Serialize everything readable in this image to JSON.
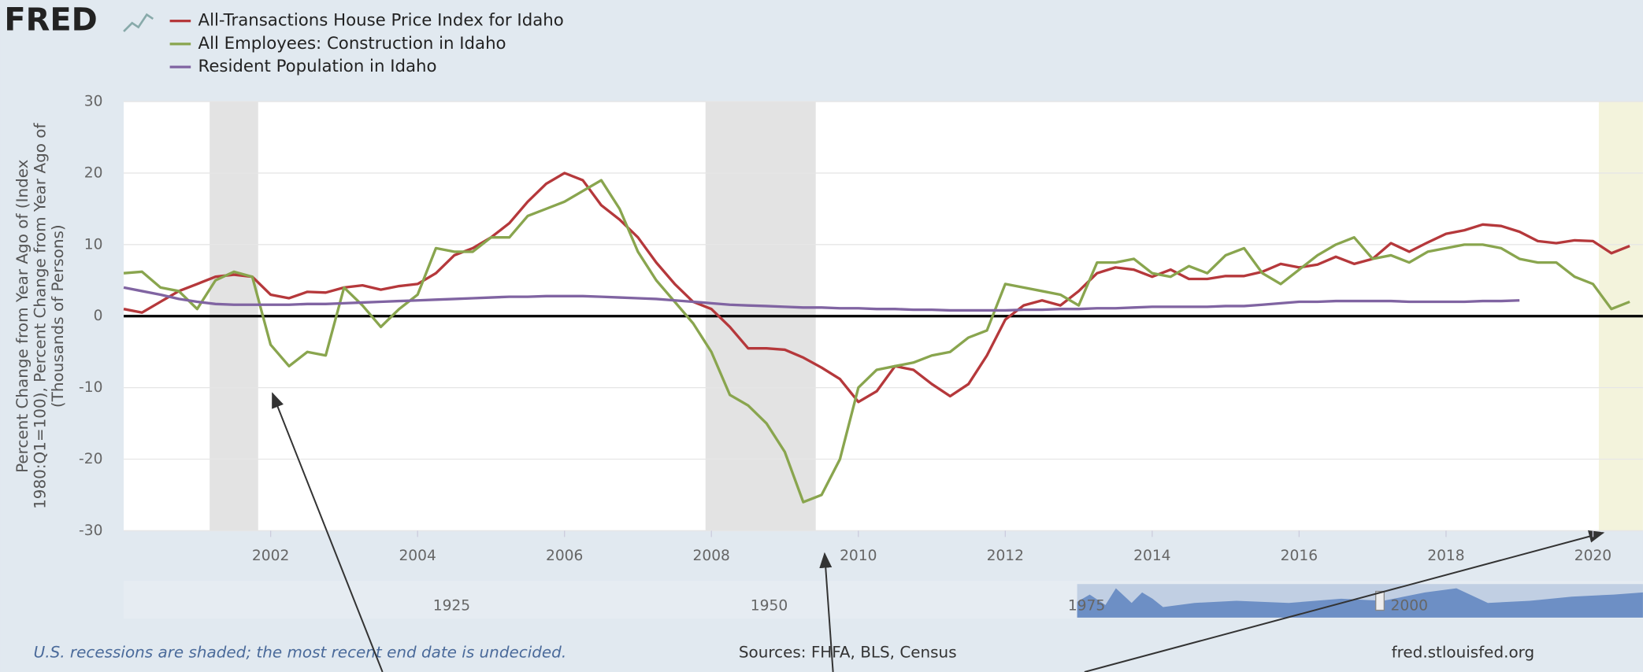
{
  "chart_data": {
    "type": "line",
    "logo": "FRED",
    "ylabel": [
      "Percent Change from Year Ago of (Index",
      "1980:Q1=100), Percent Change from Year Ago of",
      "(Thousands of Persons)"
    ],
    "x": [
      2000,
      2000.25,
      2000.5,
      2000.75,
      2001,
      2001.25,
      2001.5,
      2001.75,
      2002,
      2002.25,
      2002.5,
      2002.75,
      2003,
      2003.25,
      2003.5,
      2003.75,
      2004,
      2004.25,
      2004.5,
      2004.75,
      2005,
      2005.25,
      2005.5,
      2005.75,
      2006,
      2006.25,
      2006.5,
      2006.75,
      2007,
      2007.25,
      2007.5,
      2007.75,
      2008,
      2008.25,
      2008.5,
      2008.75,
      2009,
      2009.25,
      2009.5,
      2009.75,
      2010,
      2010.25,
      2010.5,
      2010.75,
      2011,
      2011.25,
      2011.5,
      2011.75,
      2012,
      2012.25,
      2012.5,
      2012.75,
      2013,
      2013.25,
      2013.5,
      2013.75,
      2014,
      2014.25,
      2014.5,
      2014.75,
      2015,
      2015.25,
      2015.5,
      2015.75,
      2016,
      2016.25,
      2016.5,
      2016.75,
      2017,
      2017.25,
      2017.5,
      2017.75,
      2018,
      2018.25,
      2018.5,
      2018.75,
      2019,
      2019.25,
      2019.5,
      2019.75,
      2020,
      2020.25,
      2020.5
    ],
    "series": [
      {
        "name": "All-Transactions House Price Index for Idaho",
        "color": "#b5383b",
        "values": [
          1.0,
          0.5,
          2.0,
          3.5,
          4.5,
          5.5,
          5.8,
          5.5,
          3.0,
          2.5,
          3.4,
          3.3,
          4.0,
          4.3,
          3.7,
          4.2,
          4.5,
          6.0,
          8.5,
          9.5,
          11,
          13,
          16,
          18.5,
          20,
          19,
          15.5,
          13.5,
          11,
          7.5,
          4.5,
          2,
          1,
          -1.5,
          -4.5,
          -4.5,
          -4.7,
          -5.8,
          -7.2,
          -8.8,
          -12,
          -10.5,
          -7,
          -7.5,
          -9.5,
          -11.2,
          -9.5,
          -5.5,
          -0.5,
          1.5,
          2.2,
          1.5,
          3.5,
          6,
          6.8,
          6.5,
          5.5,
          6.5,
          5.2,
          5.2,
          5.6,
          5.6,
          6.2,
          7.3,
          6.8,
          7.2,
          8.3,
          7.3,
          8.0,
          10.2,
          9.0,
          10.3,
          11.5,
          12,
          12.8,
          12.6,
          11.8,
          10.5,
          10.2,
          10.6,
          10.5,
          8.8,
          9.8
        ]
      },
      {
        "name": "All Employees: Construction in Idaho",
        "color": "#89a54e",
        "values": [
          6,
          6.2,
          4,
          3.5,
          1,
          5,
          6.2,
          5.5,
          -4,
          -7,
          -5,
          -5.5,
          4,
          1.5,
          -1.5,
          1,
          3,
          9.5,
          9,
          9,
          11,
          11,
          14,
          15,
          16,
          17.5,
          19,
          15,
          9,
          5,
          2,
          -1,
          -5,
          -11,
          -12.5,
          -15,
          -19,
          -26,
          -25,
          -20,
          -10,
          -7.5,
          -7,
          -6.5,
          -5.5,
          -5,
          -3,
          -2,
          4.5,
          4,
          3.5,
          3,
          1.5,
          7.5,
          7.5,
          8,
          6,
          5.5,
          7,
          6,
          8.5,
          9.5,
          6,
          4.5,
          6.5,
          8.5,
          10,
          11,
          8,
          8.5,
          7.5,
          9,
          9.5,
          10,
          10,
          9.5,
          8,
          7.5,
          7.5,
          5.5,
          4.5,
          1,
          2
        ]
      },
      {
        "name": "Resident Population in Idaho",
        "color": "#8064a2",
        "values": [
          4,
          3.5,
          3,
          2.4,
          2,
          1.7,
          1.6,
          1.6,
          1.6,
          1.6,
          1.7,
          1.7,
          1.8,
          1.9,
          2.0,
          2.1,
          2.2,
          2.3,
          2.4,
          2.5,
          2.6,
          2.7,
          2.7,
          2.8,
          2.8,
          2.8,
          2.7,
          2.6,
          2.5,
          2.4,
          2.2,
          2.0,
          1.8,
          1.6,
          1.5,
          1.4,
          1.3,
          1.2,
          1.2,
          1.1,
          1.1,
          1.0,
          1.0,
          0.9,
          0.9,
          0.8,
          0.8,
          0.8,
          0.8,
          0.9,
          0.9,
          1.0,
          1.0,
          1.1,
          1.1,
          1.2,
          1.3,
          1.3,
          1.3,
          1.3,
          1.4,
          1.4,
          1.6,
          1.8,
          2.0,
          2.0,
          2.1,
          2.1,
          2.1,
          2.1,
          2.0,
          2.0,
          2.0,
          2.0,
          2.1,
          2.1,
          2.2,
          null,
          null,
          null,
          null,
          null,
          null
        ]
      }
    ],
    "xlim": [
      2000,
      2020.68
    ],
    "ylim": [
      -30,
      30
    ],
    "xticks": [
      2002,
      2004,
      2006,
      2008,
      2010,
      2012,
      2014,
      2016,
      2018,
      2020
    ],
    "yticks": [
      -30,
      -20,
      -10,
      0,
      10,
      20,
      30
    ],
    "grid": true,
    "shading": [
      {
        "start": 2001.17,
        "end": 2001.83,
        "color": "#e3e3e3"
      },
      {
        "start": 2007.92,
        "end": 2009.42,
        "color": "#e3e3e3"
      },
      {
        "start": 2020.08,
        "end": 2020.68,
        "color": "#f3f3dc"
      }
    ],
    "navigator_labels": [
      "1925",
      "1950",
      "1975",
      "2000"
    ],
    "footnote": "U.S. recessions are shaded; the most recent end date is undecided.",
    "sources": "Sources: FHFA, BLS, Census",
    "site": "fred.stlouisfed.org"
  }
}
